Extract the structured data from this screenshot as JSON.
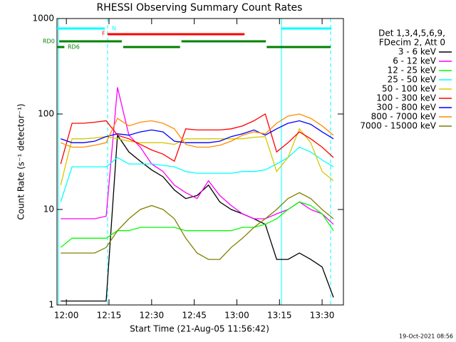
{
  "chart_data": {
    "type": "line",
    "title": "RHESSI Observing Summary Count Rates",
    "xlabel": "Start Time (21-Aug-05 11:56:42)",
    "ylabel": "Count Rate (s⁻¹ detector⁻¹)",
    "legend_header": [
      "Det 1,3,4,5,6,9,",
      "FDecim 2, Att 0"
    ],
    "timestamp": "19-Oct-2021 08:56",
    "log_y": true,
    "xlim": [
      -3.3,
      97.5
    ],
    "xticks": [
      {
        "value": 0,
        "label": "12:00"
      },
      {
        "value": 15,
        "label": "12:15"
      },
      {
        "value": 30,
        "label": "12:30"
      },
      {
        "value": 45,
        "label": "12:45"
      },
      {
        "value": 60,
        "label": "13:00"
      },
      {
        "value": 75,
        "label": "13:15"
      },
      {
        "value": 90,
        "label": "13:30"
      }
    ],
    "ylim": [
      1,
      1000
    ],
    "yticks": [
      1,
      10,
      100,
      1000
    ],
    "x": [
      -2,
      2,
      6,
      10,
      14,
      18,
      22,
      26,
      30,
      34,
      38,
      42,
      46,
      50,
      54,
      58,
      62,
      66,
      70,
      74,
      78,
      82,
      86,
      90,
      94
    ],
    "series": [
      {
        "name": "3 - 6 keV",
        "color": "#000000",
        "values": [
          1.1,
          1.1,
          1.1,
          1.1,
          1.1,
          60,
          40,
          32,
          26,
          22,
          16,
          13,
          14,
          18,
          12,
          10,
          9,
          8,
          7,
          3,
          3,
          3.5,
          3,
          2.5,
          1.2
        ]
      },
      {
        "name": "6 - 12 keV",
        "color": "#ff00ff",
        "values": [
          8,
          8,
          8,
          8,
          8.5,
          190,
          60,
          45,
          30,
          25,
          18,
          15,
          13,
          20,
          14,
          11,
          9,
          8,
          8,
          9,
          10,
          12,
          10,
          9,
          7
        ]
      },
      {
        "name": "12 - 25 keV",
        "color": "#00ff00",
        "values": [
          4,
          5,
          5,
          5,
          5,
          6,
          6,
          6.5,
          6.5,
          6.5,
          6.5,
          6,
          6,
          6,
          6,
          6,
          6.5,
          6.5,
          7,
          8,
          10,
          12,
          11,
          9,
          6
        ]
      },
      {
        "name": "25 - 50 keV",
        "color": "#00ffff",
        "values": [
          12,
          28,
          28,
          28,
          28,
          35,
          30,
          30,
          30,
          29,
          28,
          25,
          24,
          24,
          24,
          24,
          25,
          25,
          26,
          30,
          35,
          45,
          40,
          33,
          28
        ]
      },
      {
        "name": "50 - 100 keV",
        "color": "#d8c800",
        "values": [
          18,
          55,
          55,
          56,
          58,
          55,
          52,
          50,
          50,
          50,
          48,
          55,
          55,
          55,
          55,
          55,
          55,
          57,
          58,
          25,
          35,
          70,
          50,
          25,
          20
        ]
      },
      {
        "name": "100 - 300 keV",
        "color": "#ff0000",
        "values": [
          30,
          80,
          80,
          82,
          85,
          60,
          55,
          48,
          42,
          38,
          32,
          70,
          68,
          68,
          68,
          70,
          75,
          85,
          100,
          40,
          50,
          65,
          55,
          45,
          35
        ]
      },
      {
        "name": "300 - 800 keV",
        "color": "#0000ff",
        "values": [
          55,
          50,
          50,
          52,
          58,
          62,
          60,
          65,
          68,
          65,
          52,
          50,
          50,
          50,
          52,
          58,
          62,
          68,
          60,
          70,
          80,
          85,
          78,
          65,
          55
        ]
      },
      {
        "name": "800 - 7000 keV",
        "color": "#ff8c00",
        "values": [
          50,
          45,
          45,
          47,
          50,
          90,
          75,
          82,
          85,
          80,
          70,
          48,
          45,
          45,
          47,
          52,
          60,
          65,
          62,
          80,
          95,
          100,
          90,
          75,
          60
        ]
      },
      {
        "name": "7000 - 15000 keV",
        "color": "#808000",
        "values": [
          3.5,
          3.5,
          3.5,
          3.5,
          4,
          6,
          8,
          10,
          11,
          10,
          8,
          5,
          3.5,
          3,
          3,
          4,
          5,
          6.5,
          8,
          10,
          13,
          15,
          13,
          10,
          8
        ]
      }
    ],
    "flags": [
      {
        "name": "N",
        "color": "#00ffff",
        "segments": [
          [
            -3.3,
            13.5
          ],
          [
            75.7,
            93.3
          ]
        ]
      },
      {
        "name": "F",
        "color": "#ff0000",
        "segments": [
          [
            14.5,
            62.7
          ]
        ]
      },
      {
        "name": "RD0",
        "color": "#008000",
        "segments": [
          [
            -2.5,
            19.5
          ],
          [
            40.5,
            70.2
          ]
        ]
      },
      {
        "name": "RD6",
        "color": "#008000",
        "segments": [
          [
            -3.3,
            -0.7
          ],
          [
            20,
            40
          ],
          [
            70.5,
            93
          ]
        ]
      }
    ]
  }
}
